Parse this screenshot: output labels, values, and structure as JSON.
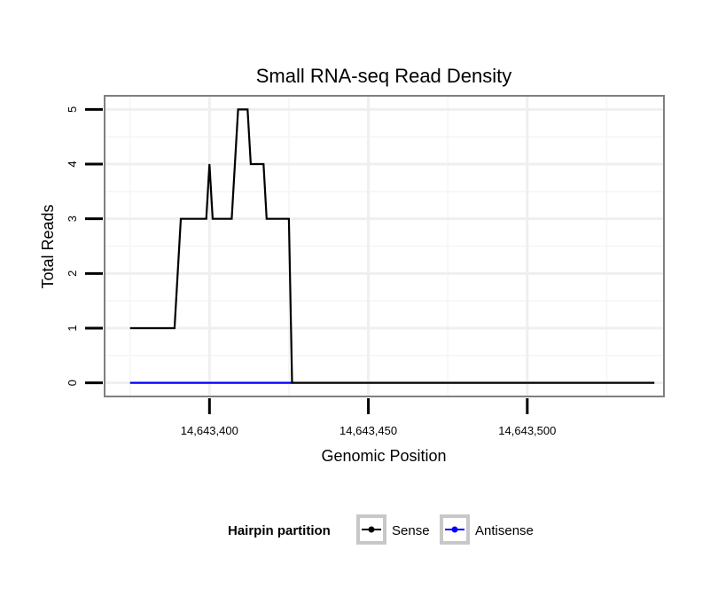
{
  "chart_data": {
    "type": "line",
    "title": "Small RNA-seq Read Density",
    "xlabel": "Genomic Position",
    "ylabel": "Total Reads",
    "xlim": [
      14643367,
      14643543
    ],
    "ylim": [
      -0.25,
      5.25
    ],
    "x_ticks": [
      {
        "value": 14643400,
        "label": "14,643,400"
      },
      {
        "value": 14643450,
        "label": "14,643,450"
      },
      {
        "value": 14643500,
        "label": "14,643,500"
      }
    ],
    "y_ticks": [
      {
        "value": 0,
        "label": "0"
      },
      {
        "value": 1,
        "label": "1"
      },
      {
        "value": 2,
        "label": "2"
      },
      {
        "value": 3,
        "label": "3"
      },
      {
        "value": 4,
        "label": "4"
      },
      {
        "value": 5,
        "label": "5"
      }
    ],
    "grid": true,
    "legend": {
      "title": "Hairpin partition",
      "position": "bottom"
    },
    "series": [
      {
        "name": "Sense",
        "color": "#000000",
        "points": [
          [
            14643375,
            1
          ],
          [
            14643389,
            1
          ],
          [
            14643391,
            3
          ],
          [
            14643399,
            3
          ],
          [
            14643400,
            4
          ],
          [
            14643401,
            3
          ],
          [
            14643407,
            3
          ],
          [
            14643409,
            5
          ],
          [
            14643412,
            5
          ],
          [
            14643413,
            4
          ],
          [
            14643417,
            4
          ],
          [
            14643418,
            3
          ],
          [
            14643425,
            3
          ],
          [
            14643426,
            0
          ],
          [
            14643540,
            0
          ]
        ]
      },
      {
        "name": "Antisense",
        "color": "#0000ff",
        "points": [
          [
            14643375,
            0
          ],
          [
            14643426,
            0
          ]
        ]
      }
    ]
  }
}
